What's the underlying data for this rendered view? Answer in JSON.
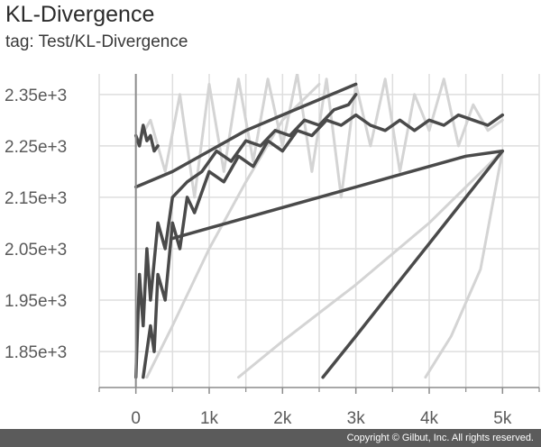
{
  "header": {
    "title": "KL-Divergence",
    "subtitle": "tag: Test/KL-Divergence"
  },
  "footer": {
    "copyright": "Copyright © Gilbut, Inc. All rights reserved."
  },
  "colors": {
    "smoothed": "#4a4a4a",
    "raw": "#d4d4d4",
    "grid": "#dedede",
    "axis": "#8c8c8c"
  },
  "chart_data": {
    "type": "line",
    "title": "KL-Divergence",
    "subtitle": "tag: Test/KL-Divergence",
    "xlabel": "",
    "ylabel": "",
    "xlim": [
      -500,
      5500
    ],
    "ylim": [
      1780,
      2390
    ],
    "grid": true,
    "x_ticks": [
      0,
      1000,
      2000,
      3000,
      4000,
      5000
    ],
    "x_tick_labels": [
      "0",
      "1k",
      "2k",
      "3k",
      "4k",
      "5k"
    ],
    "y_ticks": [
      1850,
      1950,
      2050,
      2150,
      2250,
      2350
    ],
    "y_tick_labels": [
      "1.85e+3",
      "1.95e+3",
      "2.05e+3",
      "2.15e+3",
      "2.25e+3",
      "2.35e+3"
    ],
    "series": [
      {
        "values": [
          [
            0,
            2270
          ],
          [
            50,
            2250
          ],
          [
            100,
            2290
          ],
          [
            150,
            2260
          ],
          [
            200,
            2270
          ],
          [
            250,
            2240
          ],
          [
            300,
            2250
          ]
        ],
        "kind": "smoothed"
      },
      {
        "values": [
          [
            0,
            2170
          ],
          [
            500,
            2200
          ],
          [
            1000,
            2240
          ],
          [
            1500,
            2280
          ],
          [
            2000,
            2310
          ],
          [
            2500,
            2340
          ],
          [
            3000,
            2370
          ]
        ],
        "kind": "smoothed"
      },
      {
        "values": [
          [
            0,
            1800
          ],
          [
            50,
            2000
          ],
          [
            100,
            1900
          ],
          [
            150,
            2050
          ],
          [
            200,
            1950
          ],
          [
            300,
            2100
          ],
          [
            400,
            2050
          ],
          [
            500,
            2150
          ],
          [
            700,
            2180
          ],
          [
            900,
            2200
          ],
          [
            1100,
            2240
          ],
          [
            1300,
            2220
          ],
          [
            1500,
            2260
          ],
          [
            1700,
            2250
          ],
          [
            1900,
            2280
          ],
          [
            2100,
            2270
          ],
          [
            2300,
            2300
          ],
          [
            2500,
            2290
          ],
          [
            2700,
            2320
          ],
          [
            2900,
            2330
          ],
          [
            3000,
            2350
          ]
        ],
        "kind": "smoothed"
      },
      {
        "values": [
          [
            100,
            1800
          ],
          [
            200,
            1900
          ],
          [
            250,
            1850
          ],
          [
            300,
            2000
          ],
          [
            400,
            1950
          ],
          [
            500,
            2100
          ],
          [
            600,
            2050
          ],
          [
            700,
            2150
          ],
          [
            800,
            2120
          ],
          [
            1000,
            2200
          ],
          [
            1200,
            2180
          ],
          [
            1400,
            2230
          ],
          [
            1600,
            2210
          ],
          [
            1800,
            2260
          ],
          [
            2000,
            2240
          ],
          [
            2200,
            2280
          ],
          [
            2400,
            2270
          ],
          [
            2600,
            2300
          ],
          [
            2800,
            2290
          ],
          [
            3000,
            2310
          ],
          [
            3200,
            2290
          ],
          [
            3400,
            2280
          ],
          [
            3600,
            2300
          ],
          [
            3800,
            2280
          ],
          [
            4000,
            2300
          ],
          [
            4200,
            2290
          ],
          [
            4400,
            2310
          ],
          [
            4600,
            2300
          ],
          [
            4800,
            2290
          ],
          [
            5000,
            2310
          ]
        ],
        "kind": "smoothed"
      },
      {
        "values": [
          [
            500,
            2070
          ],
          [
            1000,
            2090
          ],
          [
            1500,
            2110
          ],
          [
            2000,
            2130
          ],
          [
            2500,
            2150
          ],
          [
            3000,
            2170
          ],
          [
            3500,
            2190
          ],
          [
            4000,
            2210
          ],
          [
            4500,
            2230
          ],
          [
            5000,
            2240
          ]
        ],
        "kind": "smoothed"
      },
      {
        "values": [
          [
            2550,
            1800
          ],
          [
            3000,
            1880
          ],
          [
            3500,
            1970
          ],
          [
            4000,
            2060
          ],
          [
            4500,
            2150
          ],
          [
            5000,
            2240
          ]
        ],
        "kind": "smoothed"
      },
      {
        "values": [
          [
            150,
            1800
          ],
          [
            500,
            1900
          ],
          [
            1000,
            2050
          ],
          [
            1500,
            2180
          ],
          [
            2000,
            2300
          ],
          [
            2500,
            2370
          ]
        ],
        "kind": "raw"
      },
      {
        "values": [
          [
            1400,
            1800
          ],
          [
            2000,
            1870
          ],
          [
            3000,
            1980
          ],
          [
            4000,
            2100
          ],
          [
            5000,
            2240
          ]
        ],
        "kind": "raw"
      },
      {
        "values": [
          [
            3950,
            1800
          ],
          [
            4300,
            1880
          ],
          [
            4700,
            2010
          ],
          [
            5000,
            2240
          ]
        ],
        "kind": "raw"
      },
      {
        "values": [
          [
            0,
            2250
          ],
          [
            200,
            2300
          ],
          [
            400,
            2200
          ],
          [
            600,
            2350
          ],
          [
            800,
            2150
          ],
          [
            1000,
            2370
          ],
          [
            1200,
            2200
          ],
          [
            1400,
            2380
          ],
          [
            1600,
            2220
          ],
          [
            1800,
            2380
          ],
          [
            2000,
            2250
          ],
          [
            2200,
            2390
          ],
          [
            2400,
            2200
          ],
          [
            2600,
            2380
          ],
          [
            2800,
            2150
          ],
          [
            3000,
            2370
          ],
          [
            3200,
            2250
          ],
          [
            3400,
            2380
          ],
          [
            3600,
            2200
          ],
          [
            3800,
            2350
          ],
          [
            4000,
            2280
          ],
          [
            4200,
            2380
          ],
          [
            4400,
            2250
          ],
          [
            4600,
            2330
          ],
          [
            4800,
            2280
          ],
          [
            5000,
            2300
          ]
        ],
        "kind": "raw"
      }
    ]
  }
}
